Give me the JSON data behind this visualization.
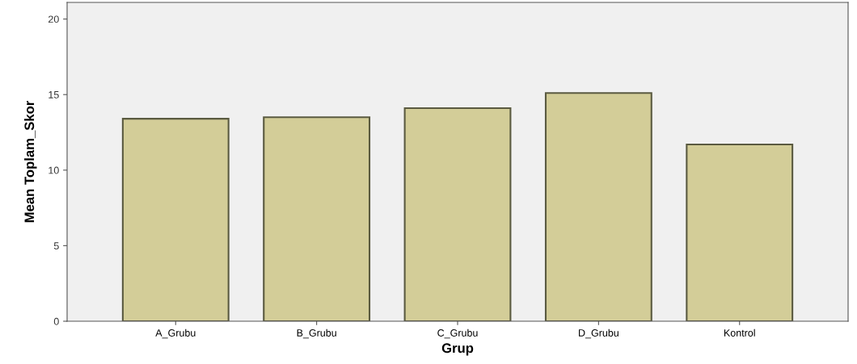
{
  "chart_data": {
    "type": "bar",
    "xlabel": "Grup",
    "ylabel": "Mean Toplam_Skor",
    "categories": [
      "A_Grubu",
      "B_Grubu",
      "C_Grubu",
      "D_Grubu",
      "Kontrol"
    ],
    "values": [
      13.4,
      13.5,
      14.1,
      15.1,
      11.7
    ],
    "color": "#d3cd98",
    "ylim": [
      0,
      21.1
    ],
    "yticks": [
      0,
      5,
      10,
      15,
      20
    ],
    "grid": false,
    "legend": false
  }
}
